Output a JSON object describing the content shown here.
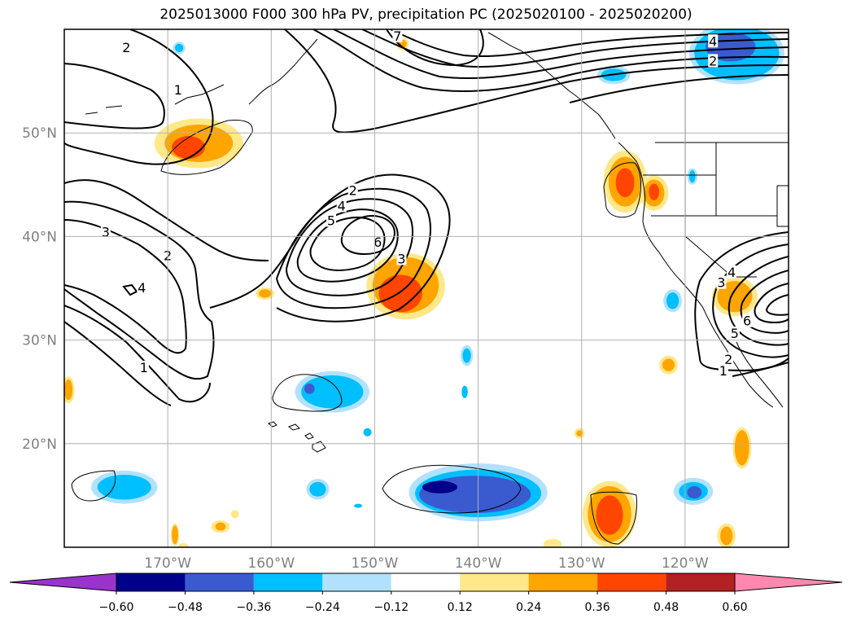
{
  "title": "2025013000 F000 300 hPa PV, precipitation PC (2025020100 - 2025020200)",
  "map": {
    "projection": "PlateCarree",
    "lon_range": [
      -180,
      -110
    ],
    "lat_range": [
      10,
      60
    ],
    "grid": true,
    "lat_ticks": [
      {
        "value": 50,
        "label": "50°N"
      },
      {
        "value": 40,
        "label": "40°N"
      },
      {
        "value": 30,
        "label": "30°N"
      },
      {
        "value": 20,
        "label": "20°N"
      }
    ],
    "lon_ticks": [
      {
        "value": -170,
        "label": "170°W"
      },
      {
        "value": -160,
        "label": "160°W"
      },
      {
        "value": -150,
        "label": "150°W"
      },
      {
        "value": -140,
        "label": "140°W"
      },
      {
        "value": -130,
        "label": "130°W"
      },
      {
        "value": -120,
        "label": "120°W"
      }
    ]
  },
  "colorbar": {
    "extend": "both",
    "colors": [
      "#9933cc",
      "#00008b",
      "#3a5bcf",
      "#00bfff",
      "#b0e2ff",
      "#ffffff",
      "#ffe88a",
      "#ffa500",
      "#ff4500",
      "#b22222",
      "#ff88b0"
    ],
    "tick_labels": [
      "−0.60",
      "−0.48",
      "−0.36",
      "−0.24",
      "−0.12",
      "0.12",
      "0.24",
      "0.36",
      "0.48",
      "0.60"
    ]
  },
  "contour_labels": [
    {
      "text": "2",
      "lon": -174,
      "lat": 58.2
    },
    {
      "text": "1",
      "lon": -169,
      "lat": 54.1
    },
    {
      "text": "3",
      "lon": -176,
      "lat": 40.4
    },
    {
      "text": "2",
      "lon": -170,
      "lat": 38.1
    },
    {
      "text": "4",
      "lon": -172.5,
      "lat": 35
    },
    {
      "text": "1",
      "lon": -172.3,
      "lat": 27.3
    },
    {
      "text": "2",
      "lon": -152.1,
      "lat": 44.4
    },
    {
      "text": "4",
      "lon": -153.2,
      "lat": 42.9
    },
    {
      "text": "5",
      "lon": -154.2,
      "lat": 41.5
    },
    {
      "text": "6",
      "lon": -149.7,
      "lat": 39.4
    },
    {
      "text": "3",
      "lon": -147.4,
      "lat": 37.8
    },
    {
      "text": "7",
      "lon": -147.8,
      "lat": 59.3
    },
    {
      "text": "4",
      "lon": -117.3,
      "lat": 58.8
    },
    {
      "text": "2",
      "lon": -117.3,
      "lat": 56.9
    },
    {
      "text": "3",
      "lon": -116.5,
      "lat": 35.5
    },
    {
      "text": "4",
      "lon": -115.5,
      "lat": 36.5
    },
    {
      "text": "6",
      "lon": -114,
      "lat": 31.8
    },
    {
      "text": "5",
      "lon": -115.2,
      "lat": 30.6
    },
    {
      "text": "2",
      "lon": -115.8,
      "lat": 28.1
    },
    {
      "text": "1",
      "lon": -116.3,
      "lat": 27
    }
  ],
  "precip_regions": [
    {
      "level": "pos1",
      "lon": -167,
      "lat": 49,
      "rx": 4.3,
      "ry": 2.4
    },
    {
      "level": "pos2",
      "lon": -167,
      "lat": 49,
      "rx": 3.3,
      "ry": 1.8
    },
    {
      "level": "pos3",
      "lon": -168,
      "lat": 48.6,
      "rx": 1.6,
      "ry": 1.1
    },
    {
      "level": "pos1",
      "lon": -147,
      "lat": 35.2,
      "rx": 3.8,
      "ry": 3.2
    },
    {
      "level": "pos2",
      "lon": -147,
      "lat": 35.3,
      "rx": 3.2,
      "ry": 2.7
    },
    {
      "level": "pos3",
      "lon": -147.5,
      "lat": 34.5,
      "rx": 2.1,
      "ry": 1.8
    },
    {
      "level": "pos1",
      "lon": -125.8,
      "lat": 45.3,
      "rx": 2.1,
      "ry": 3.0
    },
    {
      "level": "pos2",
      "lon": -125.8,
      "lat": 45.3,
      "rx": 1.6,
      "ry": 2.4
    },
    {
      "level": "pos3",
      "lon": -125.8,
      "lat": 45.2,
      "rx": 0.9,
      "ry": 1.4
    },
    {
      "level": "pos1",
      "lon": -123,
      "lat": 44.2,
      "rx": 1.4,
      "ry": 1.7
    },
    {
      "level": "pos2",
      "lon": -123,
      "lat": 44.2,
      "rx": 1.0,
      "ry": 1.3
    },
    {
      "level": "pos3",
      "lon": -123,
      "lat": 44.3,
      "rx": 0.5,
      "ry": 0.8
    },
    {
      "level": "pos1",
      "lon": -127.3,
      "lat": 13.2,
      "rx": 2.6,
      "ry": 3.2
    },
    {
      "level": "pos2",
      "lon": -127.3,
      "lat": 13.2,
      "rx": 2.1,
      "ry": 2.7
    },
    {
      "level": "pos3",
      "lon": -127.3,
      "lat": 13.1,
      "rx": 1.3,
      "ry": 1.9
    },
    {
      "level": "pos1",
      "lon": -115.2,
      "lat": 34.2,
      "rx": 2.2,
      "ry": 1.9
    },
    {
      "level": "pos2",
      "lon": -115.2,
      "lat": 34.2,
      "rx": 1.7,
      "ry": 1.5
    },
    {
      "level": "pos1",
      "lon": -114.5,
      "lat": 19.6,
      "rx": 0.9,
      "ry": 2.0
    },
    {
      "level": "pos2",
      "lon": -114.5,
      "lat": 19.6,
      "rx": 0.7,
      "ry": 1.7
    },
    {
      "level": "pos1",
      "lon": -121.6,
      "lat": 27.6,
      "rx": 0.9,
      "ry": 0.9
    },
    {
      "level": "pos2",
      "lon": -121.6,
      "lat": 27.6,
      "rx": 0.6,
      "ry": 0.6
    },
    {
      "level": "pos1",
      "lon": -116,
      "lat": 11.1,
      "rx": 0.9,
      "ry": 1.2
    },
    {
      "level": "pos2",
      "lon": -116,
      "lat": 11.1,
      "rx": 0.6,
      "ry": 0.9
    },
    {
      "level": "pos1",
      "lon": -179.6,
      "lat": 25.2,
      "rx": 0.6,
      "ry": 1.3
    },
    {
      "level": "pos2",
      "lon": -179.6,
      "lat": 25.2,
      "rx": 0.4,
      "ry": 1.0
    },
    {
      "level": "pos1",
      "lon": -169.3,
      "lat": 11.2,
      "rx": 0.4,
      "ry": 1.1
    },
    {
      "level": "pos2",
      "lon": -169.3,
      "lat": 11.2,
      "rx": 0.3,
      "ry": 0.9
    },
    {
      "level": "pos1",
      "lon": -164.9,
      "lat": 12.0,
      "rx": 0.9,
      "ry": 0.6
    },
    {
      "level": "pos2",
      "lon": -164.9,
      "lat": 12.0,
      "rx": 0.5,
      "ry": 0.4
    },
    {
      "level": "pos1",
      "lon": -163.5,
      "lat": 13.2,
      "rx": 0.4,
      "ry": 0.4
    },
    {
      "level": "pos1",
      "lon": -160.6,
      "lat": 34.5,
      "rx": 0.9,
      "ry": 0.6
    },
    {
      "level": "pos2",
      "lon": -160.6,
      "lat": 34.5,
      "rx": 0.6,
      "ry": 0.4
    },
    {
      "level": "pos1",
      "lon": -147.3,
      "lat": 58.6,
      "rx": 0.6,
      "ry": 0.6
    },
    {
      "level": "pos2",
      "lon": -147.3,
      "lat": 58.6,
      "rx": 0.4,
      "ry": 0.4
    },
    {
      "level": "pos1",
      "lon": -130.2,
      "lat": 21.0,
      "rx": 0.5,
      "ry": 0.5
    },
    {
      "level": "pos2",
      "lon": -130.2,
      "lat": 21.0,
      "rx": 0.3,
      "ry": 0.3
    },
    {
      "level": "pos1",
      "lon": -132.8,
      "lat": 10.3,
      "rx": 0.9,
      "ry": 0.5
    },
    {
      "level": "pos1",
      "lon": -168.5,
      "lat": 10.1,
      "rx": 0.5,
      "ry": 0.3
    },
    {
      "level": "neg1",
      "lon": -140,
      "lat": 15.3,
      "rx": 6.7,
      "ry": 2.8
    },
    {
      "level": "neg2",
      "lon": -140,
      "lat": 15.2,
      "rx": 6.1,
      "ry": 2.3
    },
    {
      "level": "neg3",
      "lon": -140.3,
      "lat": 15.1,
      "rx": 5.4,
      "ry": 1.8
    },
    {
      "level": "neg5",
      "lon": -143.7,
      "lat": 15.8,
      "rx": 1.7,
      "ry": 0.6
    },
    {
      "level": "neg4",
      "lon": -138,
      "lat": 14.7,
      "rx": 1.0,
      "ry": 0.5
    },
    {
      "level": "neg1",
      "lon": -154.1,
      "lat": 25.0,
      "rx": 3.6,
      "ry": 2.0
    },
    {
      "level": "neg2",
      "lon": -154.1,
      "lat": 25.0,
      "rx": 3.0,
      "ry": 1.6
    },
    {
      "level": "neg3",
      "lon": -156.3,
      "lat": 25.3,
      "rx": 0.5,
      "ry": 0.5
    },
    {
      "level": "neg1",
      "lon": -174.2,
      "lat": 15.8,
      "rx": 3.2,
      "ry": 1.6
    },
    {
      "level": "neg2",
      "lon": -174.2,
      "lat": 15.8,
      "rx": 2.6,
      "ry": 1.2
    },
    {
      "level": "neg1",
      "lon": -119.2,
      "lat": 15.4,
      "rx": 1.9,
      "ry": 1.3
    },
    {
      "level": "neg2",
      "lon": -119.2,
      "lat": 15.4,
      "rx": 1.4,
      "ry": 0.9
    },
    {
      "level": "neg3",
      "lon": -119.1,
      "lat": 15.3,
      "rx": 0.7,
      "ry": 0.6
    },
    {
      "level": "neg1",
      "lon": -115,
      "lat": 57.7,
      "rx": 4.6,
      "ry": 3.0
    },
    {
      "level": "neg2",
      "lon": -115,
      "lat": 57.7,
      "rx": 4.1,
      "ry": 2.6
    },
    {
      "level": "neg3",
      "lon": -115.6,
      "lat": 58.3,
      "rx": 2.4,
      "ry": 1.4
    },
    {
      "level": "neg4",
      "lon": -114.5,
      "lat": 58.9,
      "rx": 1.0,
      "ry": 0.5
    },
    {
      "level": "neg1",
      "lon": -126.9,
      "lat": 55.6,
      "rx": 1.6,
      "ry": 0.9
    },
    {
      "level": "neg2",
      "lon": -126.9,
      "lat": 55.6,
      "rx": 1.2,
      "ry": 0.6
    },
    {
      "level": "neg1",
      "lon": -155.5,
      "lat": 15.6,
      "rx": 1.1,
      "ry": 1.0
    },
    {
      "level": "neg2",
      "lon": -155.5,
      "lat": 15.6,
      "rx": 0.8,
      "ry": 0.7
    },
    {
      "level": "neg1",
      "lon": -121.2,
      "lat": 33.8,
      "rx": 0.9,
      "ry": 1.1
    },
    {
      "level": "neg2",
      "lon": -121.2,
      "lat": 33.8,
      "rx": 0.6,
      "ry": 0.8
    },
    {
      "level": "neg1",
      "lon": -141.1,
      "lat": 28.5,
      "rx": 0.6,
      "ry": 1.0
    },
    {
      "level": "neg2",
      "lon": -141.1,
      "lat": 28.5,
      "rx": 0.4,
      "ry": 0.7
    },
    {
      "level": "neg1",
      "lon": -168.9,
      "lat": 58.2,
      "rx": 0.6,
      "ry": 0.6
    },
    {
      "level": "neg2",
      "lon": -168.9,
      "lat": 58.2,
      "rx": 0.4,
      "ry": 0.4
    },
    {
      "level": "neg1",
      "lon": -119.3,
      "lat": 45.8,
      "rx": 0.5,
      "ry": 0.8
    },
    {
      "level": "neg2",
      "lon": -119.3,
      "lat": 45.8,
      "rx": 0.3,
      "ry": 0.6
    },
    {
      "level": "neg2",
      "lon": -141.3,
      "lat": 25.0,
      "rx": 0.3,
      "ry": 0.6
    },
    {
      "level": "neg2",
      "lon": -150.7,
      "lat": 21.1,
      "rx": 0.4,
      "ry": 0.4
    },
    {
      "level": "neg2",
      "lon": -151.6,
      "lat": 14.0,
      "rx": 0.4,
      "ry": 0.2
    }
  ],
  "level_colors": {
    "pos1": "#ffe88a",
    "pos2": "#ffa500",
    "pos3": "#ff4500",
    "neg1": "#b0e2ff",
    "neg2": "#00bfff",
    "neg3": "#3a5bcf",
    "neg4": "#3a5bcf",
    "neg5": "#00008b"
  }
}
